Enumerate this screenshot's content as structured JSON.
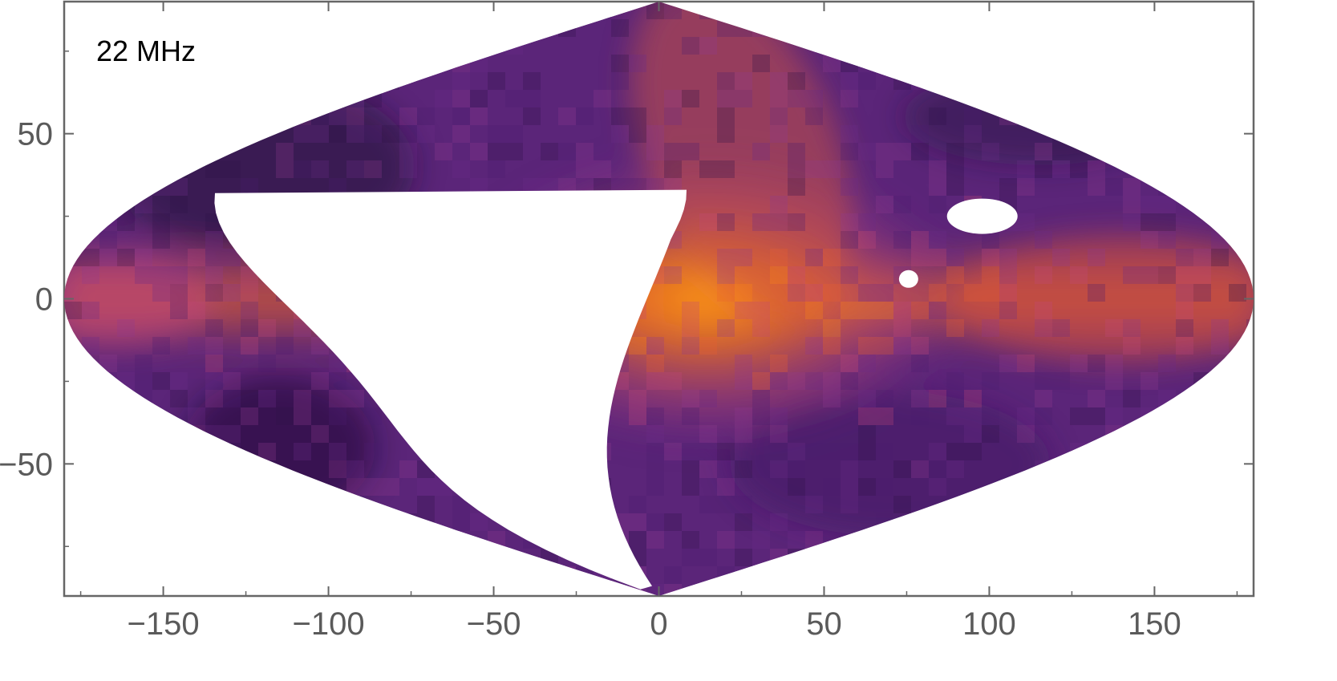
{
  "chart_data": {
    "type": "heatmap",
    "projection": "sinusoidal (Mollweide-like sky map)",
    "title": "",
    "annotation": "22 MHz",
    "xlabel": "",
    "ylabel": "",
    "xlim": [
      -180,
      180
    ],
    "ylim": [
      -90,
      90
    ],
    "x_ticks": [
      -150,
      -100,
      -50,
      0,
      50,
      100,
      150
    ],
    "y_ticks": [
      50,
      0,
      -50
    ],
    "x_tick_labels": [
      "−150",
      "−100",
      "−50",
      "0",
      "50",
      "100",
      "150"
    ],
    "y_tick_labels": [
      "50",
      "0",
      "−50"
    ],
    "grid": false,
    "legend": "none",
    "colormap": [
      "#1a0a2e",
      "#2e1248",
      "#4a1d6e",
      "#6a2c8a",
      "#8f3a8f",
      "#c2487a",
      "#e8612e",
      "#ff8a12"
    ],
    "galactic_plane_peak": {
      "lon": 0,
      "lat": 0,
      "relative_intensity": 1.0
    },
    "masked_regions": [
      {
        "name": "large unobserved region",
        "lon_range": [
          -120,
          10
        ],
        "lat_range": [
          -88,
          33
        ]
      },
      {
        "name": "small masked patch",
        "lon": 108,
        "lat": 25
      },
      {
        "name": "small masked patch",
        "lon": 76,
        "lat": 6
      }
    ]
  }
}
